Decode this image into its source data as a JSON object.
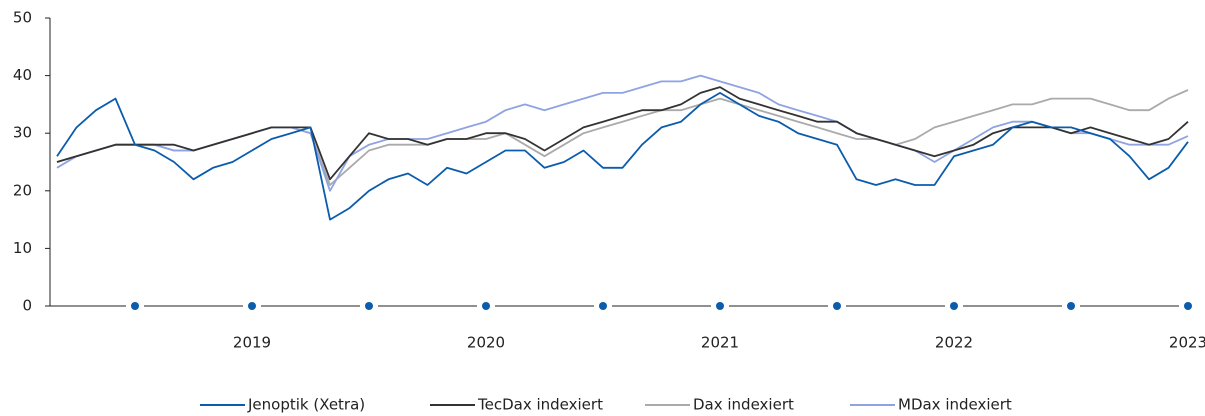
{
  "chart_data": {
    "type": "line",
    "categories": [
      null,
      null,
      null,
      null,
      null,
      null,
      null,
      null,
      null,
      null,
      "2019",
      null,
      null,
      null,
      null,
      null,
      null,
      null,
      null,
      null,
      null,
      null,
      "2020",
      null,
      null,
      null,
      null,
      null,
      null,
      null,
      null,
      null,
      null,
      null,
      "2021",
      null,
      null,
      null,
      null,
      null,
      null,
      null,
      null,
      null,
      null,
      null,
      "2022",
      null,
      null,
      null,
      null,
      null,
      null,
      null,
      null,
      null,
      null,
      null,
      "2023"
    ],
    "series": [
      {
        "name": "Jenoptik (Xetra)",
        "color": "#0b5cad",
        "values": [
          26,
          31,
          34,
          36,
          28,
          27,
          25,
          22,
          24,
          25,
          27,
          29,
          30,
          31,
          15,
          17,
          20,
          22,
          23,
          21,
          24,
          23,
          25,
          27,
          27,
          24,
          25,
          27,
          24,
          24,
          28,
          31,
          32,
          35,
          37,
          35,
          33,
          32,
          30,
          29,
          28,
          22,
          21,
          22,
          21,
          21,
          26,
          27,
          28,
          31,
          32,
          31,
          31,
          30,
          29,
          26,
          22,
          24,
          28.5
        ]
      },
      {
        "name": "TecDax indexiert",
        "color": "#333333",
        "values": [
          25,
          26,
          27,
          28,
          28,
          28,
          28,
          27,
          28,
          29,
          30,
          31,
          31,
          31,
          22,
          26,
          30,
          29,
          29,
          28,
          29,
          29,
          30,
          30,
          29,
          27,
          29,
          31,
          32,
          33,
          34,
          34,
          35,
          37,
          38,
          36,
          35,
          34,
          33,
          32,
          32,
          30,
          29,
          28,
          27,
          26,
          27,
          28,
          30,
          31,
          31,
          31,
          30,
          31,
          30,
          29,
          28,
          29,
          32
        ]
      },
      {
        "name": "Dax indexiert",
        "color": "#aaaaaa",
        "values": [
          25,
          26,
          27,
          28,
          28,
          28,
          27,
          27,
          28,
          29,
          30,
          31,
          31,
          30,
          21,
          24,
          27,
          28,
          28,
          28,
          29,
          29,
          29,
          30,
          28,
          26,
          28,
          30,
          31,
          32,
          33,
          34,
          34,
          35,
          36,
          35,
          34,
          33,
          32,
          31,
          30,
          29,
          29,
          28,
          29,
          31,
          32,
          33,
          34,
          35,
          35,
          36,
          36,
          36,
          35,
          34,
          34,
          36,
          37.5
        ]
      },
      {
        "name": "MDax indexiert",
        "color": "#8fa3e3",
        "values": [
          24,
          26,
          27,
          28,
          28,
          28,
          27,
          27,
          28,
          29,
          30,
          31,
          31,
          30,
          20,
          26,
          28,
          29,
          29,
          29,
          30,
          31,
          32,
          34,
          35,
          34,
          35,
          36,
          37,
          37,
          38,
          39,
          39,
          40,
          39,
          38,
          37,
          35,
          34,
          33,
          32,
          30,
          29,
          28,
          27,
          25,
          27,
          29,
          31,
          32,
          32,
          31,
          30,
          30,
          29,
          28,
          28,
          28,
          29.5
        ]
      }
    ],
    "ylim": [
      0,
      50
    ],
    "yticks": [
      0,
      10,
      20,
      30,
      40,
      50
    ],
    "tick_color": "#0b5cad"
  }
}
